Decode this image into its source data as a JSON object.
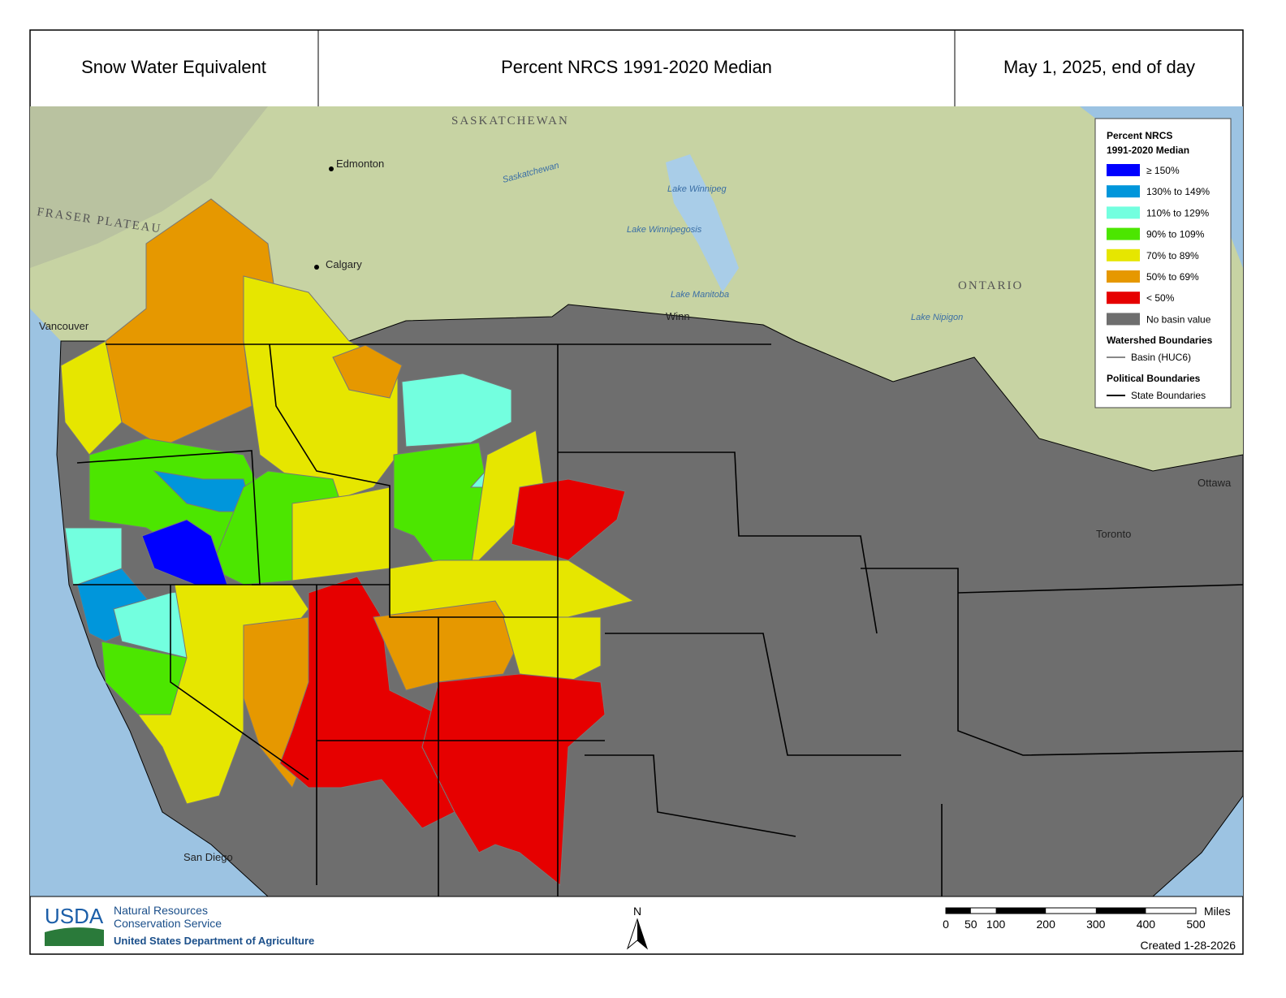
{
  "header": {
    "title": "Snow Water Equivalent",
    "subtitle": "Percent NRCS 1991-2020 Median",
    "date": "May 1, 2025, end of day"
  },
  "legend": {
    "title": [
      "Percent NRCS",
      "1991-2020 Median"
    ],
    "items": [
      {
        "label": "≥ 150%",
        "color": "#0000ff"
      },
      {
        "label": "130% to 149%",
        "color": "#0096db"
      },
      {
        "label": "110% to 129%",
        "color": "#73ffdf"
      },
      {
        "label": "90% to 109%",
        "color": "#4ce600"
      },
      {
        "label": "70% to 89%",
        "color": "#e6e600"
      },
      {
        "label": "50% to 69%",
        "color": "#e69800"
      },
      {
        "label": "< 50%",
        "color": "#e60000"
      },
      {
        "label": "No basin value",
        "color": "#6e6e6e"
      }
    ],
    "watershed_heading": "Watershed Boundaries",
    "watershed_item": "Basin (HUC6)",
    "political_heading": "Political Boundaries",
    "political_item": "State Boundaries"
  },
  "place_labels": [
    "SASKATCHEWAN",
    "Edmonton",
    "Calgary",
    "Vancouver",
    "Lake Winnipeg",
    "Lake Winnipegosis",
    "Lake Manitoba",
    "ONTARIO",
    "Lake Nipigon",
    "Ottawa",
    "Toronto",
    "Saskatchewan",
    "FRASER PLATEAU",
    "San Diego",
    "Winn"
  ],
  "footer": {
    "logo": "USDA",
    "agency": [
      "Natural Resources",
      "Conservation Service"
    ],
    "department": "United States Department of Agriculture",
    "north": "N",
    "scale_ticks": [
      0,
      50,
      100,
      200,
      300,
      400,
      500
    ],
    "scale_unit": "Miles",
    "created": "Created 1-28-2026"
  }
}
